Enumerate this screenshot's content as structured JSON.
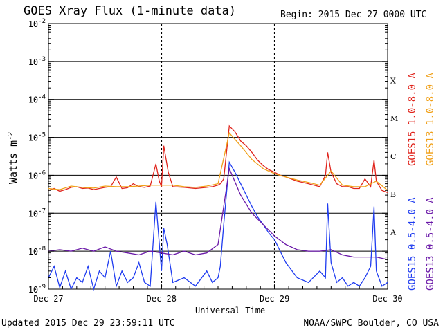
{
  "title": "GOES Xray Flux (1-minute data)",
  "begin_label": "Begin:",
  "begin_value": "2015 Dec 27 0000 UTC",
  "updated": "Updated 2015 Dec 29 23:59:11 UTC",
  "credit": "NOAA/SWPC Boulder, CO USA",
  "colors": {
    "goes15_long": "#e0241c",
    "goes13_long": "#f0a018",
    "goes15_short": "#1f3cf0",
    "goes13_short": "#6a18a8"
  },
  "chart_data": {
    "type": "line",
    "xlabel": "Universal Time",
    "ylabel": "Watts m",
    "ylabel_sup": "-2",
    "yscale": "log",
    "ylim": [
      1e-09,
      0.01
    ],
    "ytick_exponents": [
      -2,
      -3,
      -4,
      -5,
      -6,
      -7,
      -8,
      -9
    ],
    "ytick_base": "10",
    "xlim_days": [
      0,
      3
    ],
    "xticks": [
      {
        "day": 0,
        "label": "Dec 27"
      },
      {
        "day": 1,
        "label": "Dec 28"
      },
      {
        "day": 2,
        "label": "Dec 29"
      },
      {
        "day": 3,
        "label": "Dec 30"
      }
    ],
    "flare_classes": [
      {
        "label": "X",
        "level": 0.0001
      },
      {
        "label": "M",
        "level": 1e-05
      },
      {
        "label": "C",
        "level": 1e-06
      },
      {
        "label": "B",
        "level": 1e-07
      },
      {
        "label": "A",
        "level": 1e-08
      }
    ],
    "grid": true,
    "legend_position": "right",
    "series": [
      {
        "name": "GOES15 1.0-8.0 A",
        "color_key": "goes15_long",
        "x_day": [
          0,
          0.05,
          0.1,
          0.15,
          0.2,
          0.25,
          0.3,
          0.35,
          0.4,
          0.45,
          0.5,
          0.55,
          0.6,
          0.65,
          0.7,
          0.75,
          0.8,
          0.85,
          0.9,
          0.95,
          0.98,
          1.0,
          1.02,
          1.06,
          1.1,
          1.2,
          1.3,
          1.4,
          1.45,
          1.5,
          1.52,
          1.55,
          1.6,
          1.65,
          1.7,
          1.75,
          1.8,
          1.85,
          1.9,
          1.95,
          2.0,
          2.05,
          2.1,
          2.2,
          2.3,
          2.4,
          2.45,
          2.47,
          2.5,
          2.55,
          2.6,
          2.65,
          2.7,
          2.75,
          2.8,
          2.85,
          2.88,
          2.9,
          2.95,
          3.0
        ],
        "y": [
          4e-07,
          4.5e-07,
          3.8e-07,
          4.2e-07,
          4.8e-07,
          5e-07,
          4.5e-07,
          4.6e-07,
          4.2e-07,
          4.5e-07,
          4.8e-07,
          5e-07,
          9e-07,
          4.5e-07,
          4.7e-07,
          6e-07,
          5e-07,
          4.8e-07,
          5.2e-07,
          2e-06,
          7e-07,
          5e-07,
          6e-06,
          1.2e-06,
          5e-07,
          4.8e-07,
          4.5e-07,
          4.8e-07,
          5e-07,
          5.5e-07,
          6e-07,
          8e-07,
          2e-05,
          1.4e-05,
          8e-06,
          6e-06,
          4e-06,
          2.5e-06,
          1.8e-06,
          1.4e-06,
          1.2e-06,
          1e-06,
          9e-07,
          7e-07,
          6e-07,
          5e-07,
          1e-06,
          4e-06,
          1.2e-06,
          6e-07,
          5e-07,
          5e-07,
          4.5e-07,
          4.5e-07,
          8e-07,
          5e-07,
          2.5e-06,
          7e-07,
          4e-07,
          3.5e-07
        ]
      },
      {
        "name": "GOES13 1.0-8.0 A",
        "color_key": "goes13_long",
        "x_day": [
          0,
          0.1,
          0.2,
          0.3,
          0.4,
          0.5,
          0.6,
          0.7,
          0.8,
          0.9,
          1.0,
          1.1,
          1.2,
          1.3,
          1.4,
          1.5,
          1.6,
          1.7,
          1.8,
          1.9,
          2.0,
          2.1,
          2.2,
          2.3,
          2.4,
          2.5,
          2.6,
          2.7,
          2.8,
          2.9,
          3.0
        ],
        "y": [
          4.5e-07,
          4.2e-07,
          5.2e-07,
          4.8e-07,
          4.6e-07,
          5.2e-07,
          5e-07,
          5e-07,
          5.2e-07,
          5.5e-07,
          5.5e-07,
          5.5e-07,
          5e-07,
          4.8e-07,
          5.2e-07,
          6e-07,
          1.3e-05,
          6e-06,
          2.6e-06,
          1.5e-06,
          1.1e-06,
          9e-07,
          7.5e-07,
          6.5e-07,
          5.5e-07,
          1.3e-06,
          5.5e-07,
          5e-07,
          5e-07,
          7e-07,
          4e-07
        ]
      },
      {
        "name": "GOES15 0.5-4.0 A",
        "color_key": "goes15_short",
        "x_day": [
          0,
          0.05,
          0.1,
          0.15,
          0.2,
          0.25,
          0.3,
          0.35,
          0.4,
          0.45,
          0.5,
          0.55,
          0.6,
          0.65,
          0.7,
          0.75,
          0.8,
          0.85,
          0.9,
          0.95,
          1.0,
          1.02,
          1.05,
          1.1,
          1.2,
          1.3,
          1.4,
          1.45,
          1.5,
          1.52,
          1.55,
          1.6,
          1.65,
          1.7,
          1.75,
          1.8,
          1.85,
          1.9,
          1.95,
          2.0,
          2.05,
          2.1,
          2.2,
          2.3,
          2.4,
          2.45,
          2.47,
          2.5,
          2.55,
          2.6,
          2.65,
          2.7,
          2.75,
          2.8,
          2.85,
          2.88,
          2.9,
          2.95,
          3.0
        ],
        "y": [
          2e-09,
          4e-09,
          1.1e-09,
          3e-09,
          1e-09,
          2e-09,
          1.5e-09,
          4e-09,
          1e-09,
          3e-09,
          2e-09,
          1e-08,
          1.2e-09,
          3e-09,
          1.5e-09,
          2e-09,
          5e-09,
          1.5e-09,
          1.2e-09,
          2e-07,
          3e-09,
          4e-08,
          1.5e-08,
          1.5e-09,
          2e-09,
          1.2e-09,
          3e-09,
          1.5e-09,
          2e-09,
          4e-09,
          5e-08,
          2.2e-06,
          1.2e-06,
          6e-07,
          3e-07,
          1.5e-07,
          8e-08,
          5e-08,
          3e-08,
          2e-08,
          1e-08,
          5e-09,
          2e-09,
          1.5e-09,
          3e-09,
          2e-09,
          1.8e-07,
          5e-09,
          1.5e-09,
          2e-09,
          1.2e-09,
          1.5e-09,
          1.2e-09,
          2e-09,
          4e-09,
          1.5e-07,
          3e-09,
          1.2e-09,
          1.5e-09
        ]
      },
      {
        "name": "GOES13 0.5-4.0 A",
        "color_key": "goes13_short",
        "x_day": [
          0,
          0.1,
          0.2,
          0.3,
          0.4,
          0.5,
          0.6,
          0.7,
          0.8,
          0.9,
          1.0,
          1.1,
          1.2,
          1.3,
          1.4,
          1.5,
          1.6,
          1.7,
          1.8,
          1.9,
          2.0,
          2.1,
          2.2,
          2.3,
          2.4,
          2.5,
          2.6,
          2.7,
          2.8,
          2.9,
          3.0
        ],
        "y": [
          1e-08,
          1.1e-08,
          1e-08,
          1.2e-08,
          1e-08,
          1.3e-08,
          1e-08,
          9e-09,
          8e-09,
          1e-08,
          9e-09,
          8e-09,
          1e-08,
          8e-09,
          9e-09,
          1.5e-08,
          1.5e-06,
          3e-07,
          1e-07,
          5e-08,
          2.5e-08,
          1.5e-08,
          1.1e-08,
          1e-08,
          1e-08,
          1.1e-08,
          8e-09,
          7e-09,
          7e-09,
          7e-09,
          6e-09
        ]
      }
    ]
  }
}
